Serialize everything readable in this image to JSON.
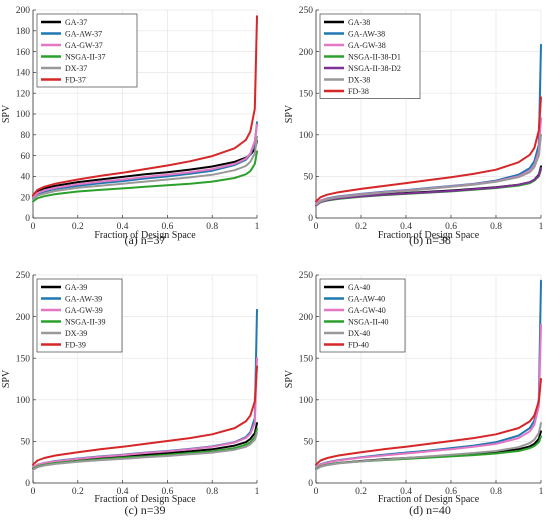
{
  "chart_data": [
    {
      "type": "line",
      "caption": "(a) n=37",
      "xlabel": "Fraction of Design Space",
      "ylabel": "SPV",
      "xlim": [
        0,
        1
      ],
      "ylim": [
        0,
        200
      ],
      "xticks": [
        "0",
        "0.2",
        "0.4",
        "0.6",
        "0.8",
        "1"
      ],
      "yticks": [
        "0",
        "20",
        "40",
        "60",
        "80",
        "100",
        "120",
        "140",
        "160",
        "180",
        "200"
      ],
      "grid": true,
      "legend_position": "top-left",
      "series": [
        {
          "name": "GA-37",
          "color": "#000000",
          "x": [
            0,
            0.02,
            0.05,
            0.1,
            0.2,
            0.3,
            0.4,
            0.5,
            0.6,
            0.7,
            0.8,
            0.9,
            0.95,
            0.97,
            0.99,
            1.0
          ],
          "y": [
            21,
            26,
            28.5,
            31,
            34.5,
            37,
            39.5,
            42,
            44,
            46.5,
            49.5,
            54,
            58,
            61,
            66,
            74
          ]
        },
        {
          "name": "GA-AW-37",
          "color": "#1f77b4",
          "x": [
            0,
            0.02,
            0.05,
            0.1,
            0.2,
            0.3,
            0.4,
            0.5,
            0.6,
            0.7,
            0.8,
            0.9,
            0.95,
            0.97,
            0.99,
            1.0
          ],
          "y": [
            19,
            23,
            25.5,
            28,
            31,
            33.5,
            35.5,
            38,
            40,
            42.5,
            45.5,
            51,
            56,
            61,
            72,
            92
          ]
        },
        {
          "name": "GA-GW-37",
          "color": "#e377c2",
          "x": [
            0,
            0.02,
            0.05,
            0.1,
            0.2,
            0.3,
            0.4,
            0.5,
            0.6,
            0.7,
            0.8,
            0.9,
            0.95,
            0.97,
            0.99,
            1.0
          ],
          "y": [
            20,
            24,
            26.5,
            29,
            32.5,
            35,
            37,
            39.5,
            41.5,
            44,
            47,
            52,
            57,
            62,
            74,
            90
          ]
        },
        {
          "name": "NSGA-II-37",
          "color": "#2ca02c",
          "x": [
            0,
            0.02,
            0.05,
            0.1,
            0.2,
            0.3,
            0.4,
            0.5,
            0.6,
            0.7,
            0.8,
            0.9,
            0.95,
            0.97,
            0.99,
            1.0
          ],
          "y": [
            16,
            19,
            21,
            23,
            25.5,
            27,
            28.5,
            30,
            31.5,
            33,
            35,
            38.5,
            42,
            45,
            52,
            64
          ]
        },
        {
          "name": "DX-37",
          "color": "#999999",
          "x": [
            0,
            0.02,
            0.05,
            0.1,
            0.2,
            0.3,
            0.4,
            0.5,
            0.6,
            0.7,
            0.8,
            0.9,
            0.95,
            0.97,
            0.99,
            1.0
          ],
          "y": [
            18,
            21.5,
            23.5,
            26,
            29,
            31,
            33,
            35,
            37,
            39,
            41.5,
            46,
            50,
            54,
            62,
            78
          ]
        },
        {
          "name": "FD-37",
          "color": "#d62728",
          "x": [
            0,
            0.02,
            0.05,
            0.1,
            0.2,
            0.3,
            0.4,
            0.5,
            0.6,
            0.7,
            0.8,
            0.9,
            0.95,
            0.97,
            0.99,
            1.0
          ],
          "y": [
            22,
            27,
            30,
            33,
            37,
            40.5,
            43.5,
            47,
            50.5,
            54.5,
            59.5,
            67,
            75,
            83,
            105,
            194
          ]
        }
      ]
    },
    {
      "type": "line",
      "caption": "(b) n=38",
      "xlabel": "Fraction of Design Space",
      "ylabel": "SPV",
      "xlim": [
        0,
        1
      ],
      "ylim": [
        0,
        250
      ],
      "xticks": [
        "0",
        "0.2",
        "0.4",
        "0.6",
        "0.8",
        "1"
      ],
      "yticks": [
        "0",
        "50",
        "100",
        "150",
        "200",
        "250"
      ],
      "grid": true,
      "legend_position": "top-left",
      "series": [
        {
          "name": "GA-38",
          "color": "#000000",
          "x": [
            0,
            0.02,
            0.05,
            0.1,
            0.2,
            0.3,
            0.4,
            0.5,
            0.6,
            0.7,
            0.8,
            0.9,
            0.95,
            0.97,
            0.99,
            1.0
          ],
          "y": [
            16,
            20,
            22,
            24,
            26.5,
            28.5,
            30,
            31.5,
            33,
            35,
            37,
            40,
            43,
            46,
            52,
            62
          ]
        },
        {
          "name": "GA-AW-38",
          "color": "#1f77b4",
          "x": [
            0,
            0.02,
            0.05,
            0.1,
            0.2,
            0.3,
            0.4,
            0.5,
            0.6,
            0.7,
            0.8,
            0.9,
            0.95,
            0.97,
            0.99,
            1.0
          ],
          "y": [
            17,
            21,
            23.5,
            26,
            29,
            31.5,
            33.5,
            36,
            38.5,
            41,
            45,
            52,
            60,
            68,
            88,
            208
          ]
        },
        {
          "name": "GA-GW-38",
          "color": "#e377c2",
          "x": [
            0,
            0.02,
            0.05,
            0.1,
            0.2,
            0.3,
            0.4,
            0.5,
            0.6,
            0.7,
            0.8,
            0.9,
            0.95,
            0.97,
            0.99,
            1.0
          ],
          "y": [
            17,
            21,
            23,
            25.5,
            28.5,
            31,
            33,
            35.5,
            38,
            40.5,
            44,
            50,
            57,
            63,
            80,
            120
          ]
        },
        {
          "name": "NSGA-II-38-D1",
          "color": "#2ca02c",
          "x": [
            0,
            0.02,
            0.05,
            0.1,
            0.2,
            0.3,
            0.4,
            0.5,
            0.6,
            0.7,
            0.8,
            0.9,
            0.95,
            0.97,
            0.99,
            1.0
          ],
          "y": [
            15,
            19,
            21,
            23,
            25.5,
            27.5,
            29,
            30.5,
            32,
            34,
            36,
            39,
            42,
            45,
            50,
            58
          ]
        },
        {
          "name": "NSGA-II-38-D2",
          "color": "#7b3294",
          "x": [
            0,
            0.02,
            0.05,
            0.1,
            0.2,
            0.3,
            0.4,
            0.5,
            0.6,
            0.7,
            0.8,
            0.9,
            0.95,
            0.97,
            0.99,
            1.0
          ],
          "y": [
            15,
            19,
            21.5,
            23.5,
            26,
            28,
            29.5,
            31,
            32.5,
            34.5,
            36.5,
            40,
            43,
            46,
            51,
            60
          ]
        },
        {
          "name": "DX-38",
          "color": "#999999",
          "x": [
            0,
            0.02,
            0.05,
            0.1,
            0.2,
            0.3,
            0.4,
            0.5,
            0.6,
            0.7,
            0.8,
            0.9,
            0.95,
            0.97,
            0.99,
            1.0
          ],
          "y": [
            16,
            20,
            22.5,
            25,
            28,
            30.5,
            32.5,
            35,
            37.5,
            40,
            43.5,
            49,
            55,
            61,
            75,
            100
          ]
        },
        {
          "name": "FD-38",
          "color": "#d62728",
          "x": [
            0,
            0.02,
            0.05,
            0.1,
            0.2,
            0.3,
            0.4,
            0.5,
            0.6,
            0.7,
            0.8,
            0.9,
            0.95,
            0.97,
            0.99,
            1.0
          ],
          "y": [
            20,
            25,
            28,
            31,
            35,
            38.5,
            42,
            45.5,
            49,
            53,
            58,
            67,
            76,
            84,
            105,
            145
          ]
        }
      ]
    },
    {
      "type": "line",
      "caption": "(c) n=39",
      "xlabel": "Fraction of Design Space",
      "ylabel": "SPV",
      "xlim": [
        0,
        1
      ],
      "ylim": [
        0,
        250
      ],
      "xticks": [
        "0",
        "0.2",
        "0.4",
        "0.6",
        "0.8",
        "1"
      ],
      "yticks": [
        "0",
        "50",
        "100",
        "150",
        "200",
        "250"
      ],
      "grid": true,
      "legend_position": "top-left",
      "series": [
        {
          "name": "GA-39",
          "color": "#000000",
          "x": [
            0,
            0.02,
            0.05,
            0.1,
            0.2,
            0.3,
            0.4,
            0.5,
            0.6,
            0.7,
            0.8,
            0.9,
            0.95,
            0.97,
            0.99,
            1.0
          ],
          "y": [
            18,
            21,
            23,
            25,
            28,
            30,
            32,
            34,
            36,
            38,
            40.5,
            45,
            49,
            53,
            60,
            72
          ]
        },
        {
          "name": "GA-AW-39",
          "color": "#1f77b4",
          "x": [
            0,
            0.02,
            0.05,
            0.1,
            0.2,
            0.3,
            0.4,
            0.5,
            0.6,
            0.7,
            0.8,
            0.9,
            0.95,
            0.97,
            0.99,
            1.0
          ],
          "y": [
            19,
            22,
            24,
            26.5,
            29.5,
            32,
            34,
            36.5,
            38.5,
            41,
            44,
            49,
            55,
            61,
            78,
            208
          ]
        },
        {
          "name": "GA-GW-39",
          "color": "#e377c2",
          "x": [
            0,
            0.02,
            0.05,
            0.1,
            0.2,
            0.3,
            0.4,
            0.5,
            0.6,
            0.7,
            0.8,
            0.9,
            0.95,
            0.97,
            0.99,
            1.0
          ],
          "y": [
            19,
            22,
            24,
            26,
            29,
            31.5,
            33.5,
            36,
            38,
            40.5,
            43.5,
            48.5,
            54,
            59,
            72,
            150
          ]
        },
        {
          "name": "NSGA-II-39",
          "color": "#2ca02c",
          "x": [
            0,
            0.02,
            0.05,
            0.1,
            0.2,
            0.3,
            0.4,
            0.5,
            0.6,
            0.7,
            0.8,
            0.9,
            0.95,
            0.97,
            0.99,
            1.0
          ],
          "y": [
            17,
            20,
            22,
            24,
            26.5,
            28.5,
            30.5,
            32,
            34,
            36,
            38,
            42,
            46,
            49,
            55,
            65
          ]
        },
        {
          "name": "DX-39",
          "color": "#999999",
          "x": [
            0,
            0.02,
            0.05,
            0.1,
            0.2,
            0.3,
            0.4,
            0.5,
            0.6,
            0.7,
            0.8,
            0.9,
            0.95,
            0.97,
            0.99,
            1.0
          ],
          "y": [
            16,
            19,
            21,
            23,
            25.5,
            27.5,
            29,
            31,
            32.5,
            34.5,
            36.5,
            40,
            43.5,
            46.5,
            52,
            60
          ]
        },
        {
          "name": "FD-39",
          "color": "#d62728",
          "x": [
            0,
            0.02,
            0.05,
            0.1,
            0.2,
            0.3,
            0.4,
            0.5,
            0.6,
            0.7,
            0.8,
            0.9,
            0.95,
            0.97,
            0.99,
            1.0
          ],
          "y": [
            22,
            27,
            30,
            33,
            37,
            40.5,
            43.5,
            47,
            50.5,
            54,
            58.5,
            66,
            74,
            81,
            98,
            140
          ]
        }
      ]
    },
    {
      "type": "line",
      "caption": "(d) n=40",
      "xlabel": "Fraction of Design Space",
      "ylabel": "SPV",
      "xlim": [
        0,
        1
      ],
      "ylim": [
        0,
        250
      ],
      "xticks": [
        "0",
        "0.2",
        "0.4",
        "0.6",
        "0.8",
        "1"
      ],
      "yticks": [
        "0",
        "50",
        "100",
        "150",
        "200",
        "250"
      ],
      "grid": true,
      "legend_position": "top-left",
      "series": [
        {
          "name": "GA-40",
          "color": "#000000",
          "x": [
            0,
            0.02,
            0.05,
            0.1,
            0.2,
            0.3,
            0.4,
            0.5,
            0.6,
            0.7,
            0.8,
            0.9,
            0.95,
            0.97,
            0.99,
            1.0
          ],
          "y": [
            17,
            20,
            22,
            24,
            26.5,
            28.5,
            30,
            31.5,
            33,
            35,
            37,
            40.5,
            44,
            47,
            53,
            62
          ]
        },
        {
          "name": "GA-AW-40",
          "color": "#1f77b4",
          "x": [
            0,
            0.02,
            0.05,
            0.1,
            0.2,
            0.3,
            0.4,
            0.5,
            0.6,
            0.7,
            0.8,
            0.9,
            0.95,
            0.97,
            0.99,
            1.0
          ],
          "y": [
            19,
            22.5,
            25,
            27.5,
            31,
            34,
            36.5,
            39,
            42,
            45,
            49,
            57,
            66,
            75,
            100,
            243
          ]
        },
        {
          "name": "GA-GW-40",
          "color": "#e377c2",
          "x": [
            0,
            0.02,
            0.05,
            0.1,
            0.2,
            0.3,
            0.4,
            0.5,
            0.6,
            0.7,
            0.8,
            0.9,
            0.95,
            0.97,
            0.99,
            1.0
          ],
          "y": [
            19,
            22,
            24.5,
            27,
            30.5,
            33,
            35.5,
            38,
            40.5,
            43.5,
            47,
            54,
            62,
            70,
            92,
            190
          ]
        },
        {
          "name": "NSGA-II-40",
          "color": "#2ca02c",
          "x": [
            0,
            0.02,
            0.05,
            0.1,
            0.2,
            0.3,
            0.4,
            0.5,
            0.6,
            0.7,
            0.8,
            0.9,
            0.95,
            0.97,
            0.99,
            1.0
          ],
          "y": [
            17,
            20,
            22,
            24,
            26,
            27.5,
            29,
            30.5,
            32,
            33.5,
            35.5,
            38.5,
            42,
            44.5,
            49,
            56
          ]
        },
        {
          "name": "DX-40",
          "color": "#999999",
          "x": [
            0,
            0.02,
            0.05,
            0.1,
            0.2,
            0.3,
            0.4,
            0.5,
            0.6,
            0.7,
            0.8,
            0.9,
            0.95,
            0.97,
            0.99,
            1.0
          ],
          "y": [
            16,
            19.5,
            21.5,
            23.5,
            26,
            28,
            30,
            32,
            34,
            36,
            38.5,
            43,
            48,
            52,
            60,
            72
          ]
        },
        {
          "name": "FD-40",
          "color": "#d62728",
          "x": [
            0,
            0.02,
            0.05,
            0.1,
            0.2,
            0.3,
            0.4,
            0.5,
            0.6,
            0.7,
            0.8,
            0.9,
            0.95,
            0.97,
            0.99,
            1.0
          ],
          "y": [
            22,
            27,
            30,
            33,
            37,
            40.5,
            43.5,
            47,
            50.5,
            54,
            58.5,
            66,
            74,
            81,
            98,
            125
          ]
        }
      ]
    }
  ]
}
